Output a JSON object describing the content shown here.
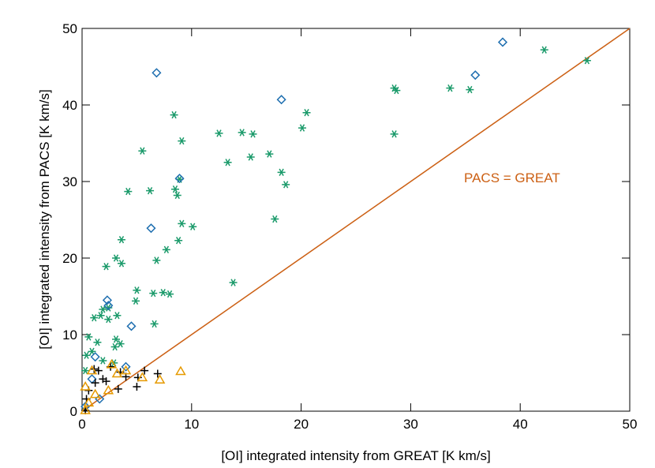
{
  "chart_data": {
    "type": "scatter",
    "x_label": "[OI] integrated intensity from GREAT [K km/s]",
    "y_label": "[OI] integrated intensity from PACS [K km/s]",
    "xlim": [
      0,
      50
    ],
    "ylim": [
      0,
      50
    ],
    "xticks": [
      0,
      10,
      20,
      30,
      40,
      50
    ],
    "yticks": [
      0,
      10,
      20,
      30,
      40,
      50
    ],
    "reference_line": {
      "slope": 1,
      "color": "#cc6014",
      "label": "PACS = GREAT"
    },
    "series": [
      {
        "marker": "asterisk",
        "color": "#1a9a6a",
        "x": [
          46.1,
          42.2,
          33.6,
          35.4,
          28.5,
          28.7,
          28.5,
          20.5,
          20.1,
          18.2,
          18.6,
          17.6,
          17.1,
          15.4,
          15.6,
          14.6,
          13.3,
          12.5,
          13.8,
          8.4,
          9.1,
          5.5,
          8.9,
          8.5,
          8.7,
          6.2,
          4.2,
          9.1,
          10.1,
          8.8,
          7.7,
          6.8,
          3.6,
          3.1,
          3.6,
          2.2,
          5.0,
          6.5,
          7.4,
          8.0,
          4.9,
          6.6,
          1.1,
          1.9,
          2.4,
          1.7,
          2.4,
          3.2,
          1.4,
          3.1,
          3.5,
          0.6,
          0.4,
          0.9,
          1.9,
          2.9,
          0.3,
          3.0
        ],
        "y": [
          45.8,
          47.2,
          42.2,
          42.0,
          42.2,
          41.9,
          36.2,
          39.0,
          37.0,
          31.2,
          29.6,
          25.1,
          33.6,
          33.2,
          36.2,
          36.4,
          32.5,
          36.3,
          16.8,
          38.7,
          35.3,
          34.0,
          30.3,
          29.0,
          28.2,
          28.8,
          28.7,
          24.5,
          24.1,
          22.3,
          21.1,
          19.7,
          22.4,
          20.0,
          19.3,
          18.9,
          15.8,
          15.4,
          15.5,
          15.3,
          14.4,
          11.4,
          12.2,
          13.3,
          13.5,
          12.5,
          12.0,
          12.5,
          9.0,
          9.4,
          8.8,
          9.7,
          7.3,
          7.8,
          6.6,
          6.3,
          5.3,
          8.4
        ]
      },
      {
        "marker": "diamond",
        "color": "#1f6fb0",
        "x": [
          38.4,
          35.9,
          6.8,
          18.2,
          8.9,
          6.3,
          2.3,
          2.4,
          4.5,
          1.2,
          4.0,
          0.9,
          1.6,
          0.3
        ],
        "y": [
          48.2,
          43.9,
          44.2,
          40.7,
          30.4,
          23.9,
          14.5,
          13.8,
          11.1,
          7.1,
          5.8,
          4.2,
          1.6,
          0.6
        ]
      },
      {
        "marker": "plus",
        "color": "#000000",
        "x": [
          6.9,
          5.7,
          5.0,
          3.3,
          1.9,
          1.5,
          1.1,
          2.6,
          4.0,
          0.4,
          0.6,
          1.2,
          2.2,
          3.5,
          5.1,
          0.3
        ],
        "y": [
          4.9,
          5.3,
          3.2,
          2.9,
          4.2,
          5.3,
          5.5,
          5.8,
          4.5,
          1.6,
          2.7,
          3.7,
          3.9,
          5.1,
          4.4,
          0.1
        ]
      },
      {
        "marker": "triangle",
        "color": "#e69a00",
        "x": [
          9.0,
          7.1,
          5.5,
          2.7,
          3.2,
          0.9,
          0.3,
          0.6,
          1.2,
          2.4,
          0.3,
          4.0
        ],
        "y": [
          5.2,
          4.1,
          4.4,
          6.1,
          4.9,
          5.3,
          0.1,
          1.1,
          2.2,
          2.7,
          3.2,
          5.3
        ]
      }
    ]
  }
}
